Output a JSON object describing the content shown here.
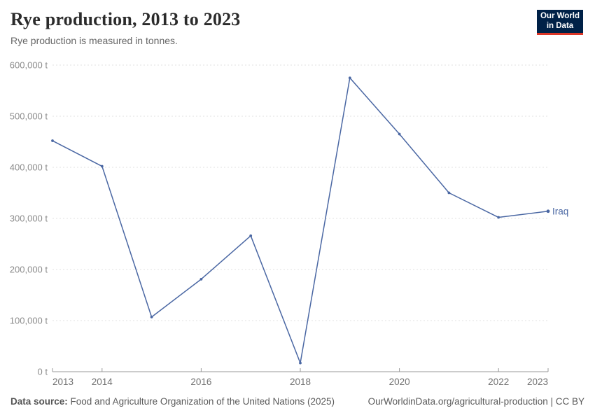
{
  "header": {
    "title": "Rye production, 2013 to 2023",
    "subtitle": "Rye production is measured in tonnes."
  },
  "logo": {
    "line1": "Our World",
    "line2": "in Data",
    "bg_color": "#002147",
    "accent_color": "#dc3627"
  },
  "chart_data": {
    "type": "line",
    "title": "Rye production, 2013 to 2023",
    "unit": "t",
    "grid": "horizontal dashed",
    "legend_position": "end-of-line label",
    "x": [
      2013,
      2014,
      2015,
      2016,
      2017,
      2018,
      2019,
      2020,
      2021,
      2022,
      2023
    ],
    "series": [
      {
        "name": "Iraq",
        "color": "#4a67a3",
        "values": [
          452000,
          402000,
          107000,
          181000,
          266000,
          17000,
          575000,
          465000,
          350000,
          302000,
          314000
        ]
      }
    ],
    "ylim": [
      0,
      600000
    ],
    "yticks": [
      {
        "value": 0,
        "label": "0 t"
      },
      {
        "value": 100000,
        "label": "100,000 t"
      },
      {
        "value": 200000,
        "label": "200,000 t"
      },
      {
        "value": 300000,
        "label": "300,000 t"
      },
      {
        "value": 400000,
        "label": "400,000 t"
      },
      {
        "value": 500000,
        "label": "500,000 t"
      },
      {
        "value": 600000,
        "label": "600,000 t"
      }
    ],
    "xticks": [
      {
        "value": 2013,
        "label": "2013"
      },
      {
        "value": 2014,
        "label": "2014"
      },
      {
        "value": 2016,
        "label": "2016"
      },
      {
        "value": 2018,
        "label": "2018"
      },
      {
        "value": 2020,
        "label": "2020"
      },
      {
        "value": 2022,
        "label": "2022"
      },
      {
        "value": 2023,
        "label": "2023"
      }
    ]
  },
  "footer": {
    "datasource_label": "Data source:",
    "datasource_text": " Food and Agriculture Organization of the United Nations (2025)",
    "link_text": "OurWorldinData.org/agricultural-production | CC BY"
  },
  "colors": {
    "gridline": "#e2e2e2",
    "axis_line": "#999999",
    "ytick_text": "#8c8c8c",
    "xtick_text": "#707070"
  }
}
